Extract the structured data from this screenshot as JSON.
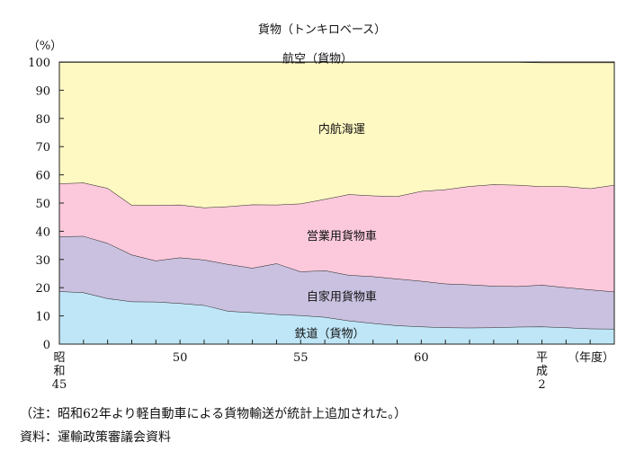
{
  "chart_data": {
    "type": "area",
    "stacked": true,
    "title": "貨物（トンキロベース）",
    "ylabel": "（%）",
    "xlabel": "（年度）",
    "ylim": [
      0,
      100
    ],
    "yticks": [
      0,
      10,
      20,
      30,
      40,
      50,
      60,
      70,
      80,
      90,
      100
    ],
    "x": [
      45,
      46,
      47,
      48,
      49,
      50,
      51,
      52,
      53,
      54,
      55,
      56,
      57,
      58,
      59,
      60,
      61,
      62,
      63,
      64,
      65,
      66,
      67,
      68
    ],
    "xlim": [
      45,
      68
    ],
    "xticks": [
      {
        "x": 45,
        "label": [
          "昭",
          "和",
          "45"
        ]
      },
      {
        "x": 50,
        "label": [
          "50"
        ]
      },
      {
        "x": 55,
        "label": [
          "55"
        ]
      },
      {
        "x": 60,
        "label": [
          "60"
        ]
      },
      {
        "x": 65,
        "label": [
          "平",
          "成",
          "2"
        ]
      }
    ],
    "series": [
      {
        "name": "鉄道（貨物）",
        "color": "#bfe6f7",
        "values": [
          18.7,
          18.3,
          16.2,
          15.1,
          15.0,
          14.5,
          13.8,
          11.7,
          11.2,
          10.6,
          10.2,
          9.6,
          8.3,
          7.4,
          6.6,
          6.2,
          5.9,
          5.8,
          5.9,
          6.1,
          6.2,
          5.9,
          5.5,
          5.4
        ]
      },
      {
        "name": "自家用貨物車",
        "color": "#c9c1df",
        "values": [
          19.5,
          20.0,
          19.6,
          16.6,
          14.6,
          16.2,
          16.1,
          16.6,
          15.8,
          18.0,
          15.5,
          16.5,
          16.2,
          16.6,
          16.6,
          16.2,
          15.5,
          15.3,
          14.7,
          14.4,
          14.8,
          14.2,
          13.8,
          13.2
        ]
      },
      {
        "name": "営業用貨物車",
        "color": "#fcc9dc",
        "values": [
          18.7,
          18.9,
          19.5,
          17.6,
          19.7,
          18.7,
          18.5,
          20.5,
          22.5,
          20.8,
          24.1,
          25.3,
          28.6,
          28.6,
          29.2,
          31.8,
          33.4,
          34.9,
          36.0,
          35.9,
          34.9,
          35.8,
          35.9,
          37.8
        ]
      },
      {
        "name": "内航海運",
        "color": "#fef8c2",
        "values": [
          43.0,
          42.7,
          44.6,
          50.6,
          50.6,
          50.5,
          51.5,
          51.1,
          50.4,
          50.5,
          50.1,
          48.5,
          46.8,
          47.3,
          47.5,
          45.7,
          45.1,
          43.9,
          43.3,
          43.5,
          43.9,
          43.9,
          44.6,
          43.4
        ]
      },
      {
        "name": "航空（貨物）",
        "color": "#fef8c2",
        "values": [
          0.1,
          0.1,
          0.1,
          0.1,
          0.1,
          0.1,
          0.1,
          0.1,
          0.1,
          0.1,
          0.1,
          0.1,
          0.1,
          0.1,
          0.1,
          0.1,
          0.1,
          0.1,
          0.1,
          0.1,
          0.2,
          0.2,
          0.2,
          0.2
        ]
      }
    ],
    "labels_on_chart": [
      {
        "text": "航空（貨物）",
        "x": 55.7,
        "y": 101.5
      },
      {
        "text": "内航海運",
        "x": 56.7,
        "y": 76.5
      },
      {
        "text": "営業用貨物車",
        "x": 56.7,
        "y": 38.5
      },
      {
        "text": "自家用貨物車",
        "x": 56.7,
        "y": 17.0
      },
      {
        "text": "鉄道（貨物）",
        "x": 56.2,
        "y": 4.0
      }
    ]
  },
  "notes": {
    "note1": "（注：昭和62年より軽自動車による貨物輸送が統計上追加された。）",
    "note2": "資料：運輸政策審議会資料"
  }
}
